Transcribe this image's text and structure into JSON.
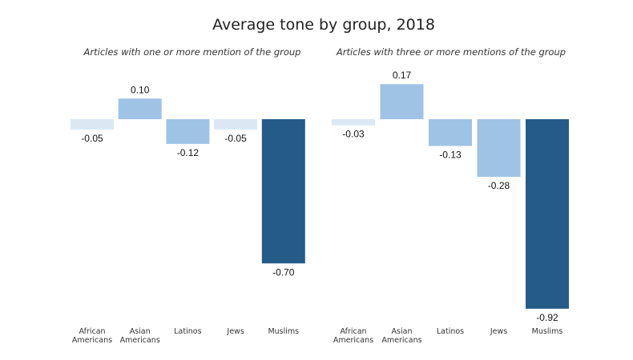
{
  "title": "Average tone by group, 2018",
  "colors": {
    "light": "#dbe8f4",
    "medium": "#9fc3e5",
    "dark": "#255b89"
  },
  "chart_data": [
    {
      "type": "bar",
      "subtitle": "Articles with one or more mention of the group",
      "categories": [
        "African Americans",
        "Asian Americans",
        "Latinos",
        "Jews",
        "Muslims"
      ],
      "category_lines": [
        [
          "African",
          "Americans"
        ],
        [
          "Asian",
          "Americans"
        ],
        [
          "Latinos"
        ],
        [
          "Jews"
        ],
        [
          "Muslims"
        ]
      ],
      "values": [
        -0.05,
        0.1,
        -0.12,
        -0.05,
        -0.7
      ],
      "value_labels": [
        "-0.05",
        "0.10",
        "-0.12",
        "-0.05",
        "-0.70"
      ],
      "ylim": [
        -0.95,
        0.2
      ],
      "grid": false
    },
    {
      "type": "bar",
      "subtitle": "Articles with three or more mentions of the group",
      "categories": [
        "African Americans",
        "Asian Americans",
        "Latinos",
        "Jews",
        "Muslims"
      ],
      "category_lines": [
        [
          "African",
          "Americans"
        ],
        [
          "Asian",
          "Americans"
        ],
        [
          "Latinos"
        ],
        [
          "Jews"
        ],
        [
          "Muslims"
        ]
      ],
      "values": [
        -0.03,
        0.17,
        -0.13,
        -0.28,
        -0.92
      ],
      "value_labels": [
        "-0.03",
        "0.17",
        "-0.13",
        "-0.28",
        "-0.92"
      ],
      "ylim": [
        -0.95,
        0.2
      ],
      "grid": false
    }
  ]
}
